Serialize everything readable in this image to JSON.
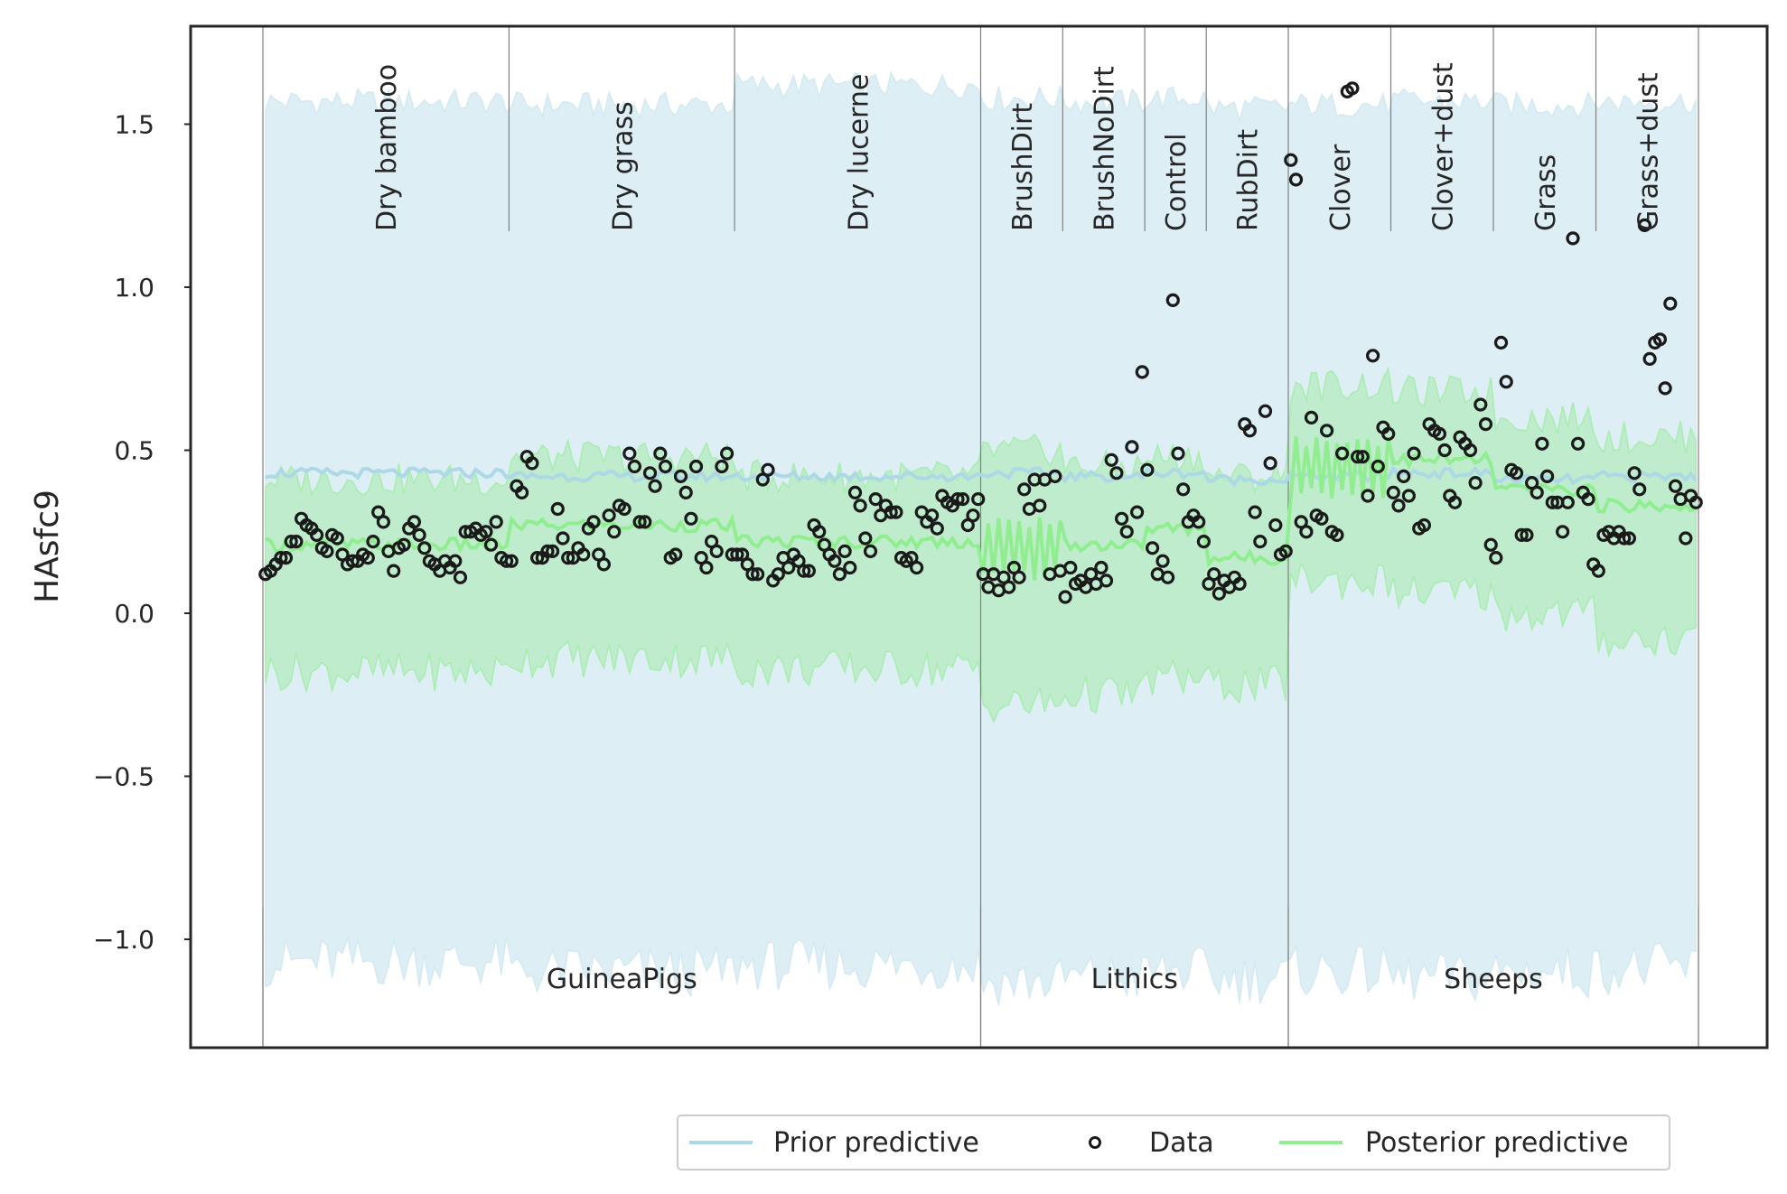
{
  "chart_data": {
    "type": "scatter",
    "title": "",
    "xlabel": "",
    "ylabel": "HAsfc9",
    "ylim": [
      -1.35,
      1.8
    ],
    "yticks": [
      -1.0,
      -0.5,
      0.0,
      0.5,
      1.0,
      1.5
    ],
    "ytick_labels": [
      "−1.0",
      "−0.5",
      "0.0",
      "0.5",
      "1.0",
      "1.5"
    ],
    "grid": false,
    "n_observations": 280,
    "treatments": [
      {
        "name": "Dry bamboo",
        "diet": "GuineaPigs",
        "start": 0,
        "end": 48,
        "post_mean": 0.21,
        "post_band": [
          -0.18,
          0.41
        ],
        "prior_mean": 0.43,
        "prior_band": [
          -1.07,
          1.57
        ],
        "data": [
          0.12,
          0.13,
          0.15,
          0.17,
          0.17,
          0.22,
          0.22,
          0.29,
          0.27,
          0.26,
          0.24,
          0.2,
          0.19,
          0.24,
          0.23,
          0.18,
          0.15,
          0.16,
          0.16,
          0.18,
          0.17,
          0.22,
          0.31,
          0.28,
          0.19,
          0.13,
          0.2,
          0.21,
          0.26,
          0.28,
          0.24,
          0.2,
          0.16,
          0.15,
          0.13,
          0.16,
          0.14,
          0.16,
          0.11,
          0.25,
          0.25,
          0.26,
          0.24,
          0.25,
          0.21,
          0.28,
          0.17,
          0.16
        ]
      },
      {
        "name": "Dry grass",
        "diet": "GuineaPigs",
        "start": 48,
        "end": 92,
        "post_mean": 0.27,
        "post_band": [
          -0.14,
          0.48
        ],
        "prior_mean": 0.42,
        "prior_band": [
          -1.1,
          1.56
        ],
        "data": [
          0.16,
          0.39,
          0.37,
          0.48,
          0.46,
          0.17,
          0.17,
          0.19,
          0.19,
          0.32,
          0.23,
          0.17,
          0.17,
          0.2,
          0.18,
          0.26,
          0.28,
          0.18,
          0.15,
          0.3,
          0.25,
          0.33,
          0.32,
          0.49,
          0.45,
          0.28,
          0.28,
          0.43,
          0.39,
          0.49,
          0.45,
          0.17,
          0.18,
          0.42,
          0.37,
          0.29,
          0.45,
          0.17,
          0.14,
          0.22,
          0.19,
          0.45,
          0.49,
          0.18
        ]
      },
      {
        "name": "Dry lucerne",
        "diet": "GuineaPigs",
        "start": 92,
        "end": 140,
        "post_mean": 0.22,
        "post_band": [
          -0.17,
          0.42
        ],
        "prior_mean": 0.42,
        "prior_band": [
          -1.08,
          1.62
        ],
        "data": [
          0.18,
          0.18,
          0.15,
          0.12,
          0.12,
          0.41,
          0.44,
          0.1,
          0.12,
          0.17,
          0.14,
          0.18,
          0.16,
          0.13,
          0.13,
          0.27,
          0.25,
          0.21,
          0.18,
          0.16,
          0.12,
          0.19,
          0.14,
          0.37,
          0.33,
          0.23,
          0.19,
          0.35,
          0.3,
          0.33,
          0.31,
          0.31,
          0.17,
          0.16,
          0.17,
          0.14,
          0.31,
          0.28,
          0.3,
          0.26,
          0.36,
          0.34,
          0.33,
          0.35,
          0.35,
          0.27,
          0.3,
          0.35
        ]
      },
      {
        "name": "BrushDirt",
        "diet": "Lithics",
        "start": 140,
        "end": 156,
        "post_mean": 0.2,
        "post_band": [
          -0.28,
          0.5
        ],
        "prior_mean": 0.43,
        "prior_band": [
          -1.13,
          1.58
        ],
        "data": [
          0.12,
          0.08,
          0.12,
          0.07,
          0.11,
          0.08,
          0.14,
          0.11,
          0.38,
          0.32,
          0.41,
          0.33,
          0.41,
          0.12,
          0.42,
          0.13
        ]
      },
      {
        "name": "BrushNoDirt",
        "diet": "Lithics",
        "start": 156,
        "end": 172,
        "post_mean": 0.21,
        "post_band": [
          -0.25,
          0.45
        ],
        "prior_mean": 0.42,
        "prior_band": [
          -1.12,
          1.57
        ],
        "data": [
          0.05,
          0.14,
          0.09,
          0.1,
          0.08,
          0.12,
          0.09,
          0.14,
          0.1,
          0.47,
          0.43,
          0.29,
          0.25,
          0.51,
          0.31,
          0.74
        ]
      },
      {
        "name": "Control",
        "diet": "Lithics",
        "start": 172,
        "end": 184,
        "post_mean": 0.26,
        "post_band": [
          -0.2,
          0.48
        ],
        "prior_mean": 0.43,
        "prior_band": [
          -1.1,
          1.58
        ],
        "data": [
          0.44,
          0.2,
          0.12,
          0.16,
          0.11,
          0.96,
          0.49,
          0.38,
          0.28,
          0.3,
          0.28,
          0.22
        ]
      },
      {
        "name": "RubDirt",
        "diet": "Lithics",
        "start": 184,
        "end": 200,
        "post_mean": 0.17,
        "post_band": [
          -0.22,
          0.42
        ],
        "prior_mean": 0.41,
        "prior_band": [
          -1.12,
          1.55
        ],
        "data": [
          0.09,
          0.12,
          0.06,
          0.1,
          0.08,
          0.11,
          0.09,
          0.58,
          0.56,
          0.31,
          0.22,
          0.62,
          0.46,
          0.27,
          0.18,
          0.19
        ]
      },
      {
        "name": "Clover",
        "diet": "Sheeps",
        "start": 200,
        "end": 220,
        "post_mean": 0.45,
        "post_band": [
          0.1,
          0.7
        ],
        "prior_mean": 0.42,
        "prior_band": [
          -1.1,
          1.56
        ],
        "data": [
          1.39,
          1.33,
          0.28,
          0.25,
          0.6,
          0.3,
          0.29,
          0.56,
          0.25,
          0.24,
          0.49,
          1.6,
          1.61,
          0.48,
          0.48,
          0.36,
          0.79,
          0.45,
          0.57,
          0.55
        ]
      },
      {
        "name": "Clover+dust",
        "diet": "Sheeps",
        "start": 220,
        "end": 240,
        "post_mean": 0.47,
        "post_band": [
          0.06,
          0.68
        ],
        "prior_mean": 0.43,
        "prior_band": [
          -1.12,
          1.57
        ],
        "data": [
          0.37,
          0.33,
          0.42,
          0.36,
          0.49,
          0.26,
          0.27,
          0.58,
          0.56,
          0.55,
          0.5,
          0.36,
          0.34,
          0.54,
          0.52,
          0.5,
          0.4,
          0.64,
          0.58,
          0.21
        ]
      },
      {
        "name": "Grass",
        "diet": "Sheeps",
        "start": 240,
        "end": 260,
        "post_mean": 0.38,
        "post_band": [
          0.0,
          0.6
        ],
        "prior_mean": 0.41,
        "prior_band": [
          -1.1,
          1.56
        ],
        "data": [
          0.17,
          0.83,
          0.71,
          0.44,
          0.43,
          0.24,
          0.24,
          0.4,
          0.37,
          0.52,
          0.42,
          0.34,
          0.34,
          0.25,
          0.34,
          1.15,
          0.52,
          0.37,
          0.35,
          0.15
        ]
      },
      {
        "name": "Grass+dust",
        "diet": "Sheeps",
        "start": 260,
        "end": 280,
        "post_mean": 0.33,
        "post_band": [
          -0.08,
          0.54
        ],
        "prior_mean": 0.42,
        "prior_band": [
          -1.09,
          1.57
        ],
        "data": [
          0.13,
          0.24,
          0.25,
          0.23,
          0.25,
          0.23,
          0.23,
          0.43,
          0.38,
          1.19,
          0.78,
          0.83,
          0.84,
          0.69,
          0.95,
          0.39,
          0.35,
          0.23,
          0.36,
          0.34
        ]
      }
    ],
    "diets": [
      {
        "name": "GuineaPigs",
        "start": 0,
        "end": 140
      },
      {
        "name": "Lithics",
        "start": 140,
        "end": 200
      },
      {
        "name": "Sheeps",
        "start": 200,
        "end": 280
      }
    ],
    "series": [
      {
        "name": "Prior predictive",
        "color": "#add8e6",
        "band_color": "#ddeef5"
      },
      {
        "name": "Data",
        "color": "#1a1a1a",
        "marker": "open-circle"
      },
      {
        "name": "Posterior predictive",
        "color": "#90ee90",
        "band_color": "#bfeccc"
      }
    ],
    "legend_position": "bottom-center, below axes"
  }
}
